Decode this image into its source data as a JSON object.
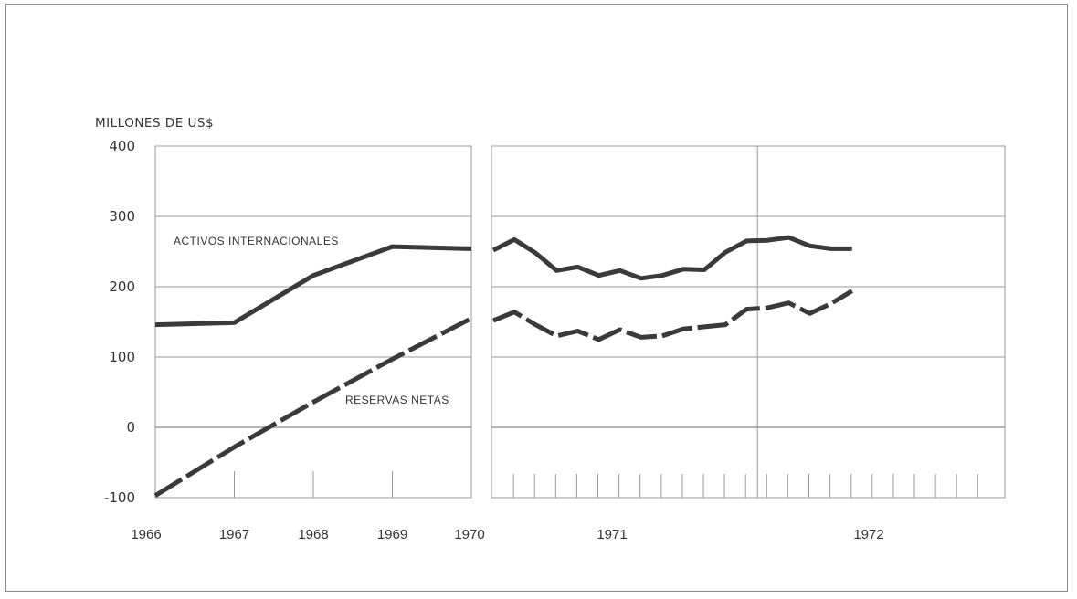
{
  "chart_data": {
    "type": "line",
    "ylabel": "MILLONES DE US$",
    "ylim": [
      -100,
      400
    ],
    "yticks": [
      "400",
      "300",
      "200",
      "100",
      "0",
      "-100"
    ],
    "x_labels": [
      "1966",
      "1967",
      "1968",
      "1969",
      "1970",
      "1971",
      "1972"
    ],
    "grid": true,
    "series": [
      {
        "name": "ACTIVOS INTERNACIONALES",
        "style": "solid",
        "color": "#3a3a3a",
        "annual": {
          "x": [
            1966,
            1967,
            1968,
            1969,
            1970
          ],
          "y": [
            146,
            149,
            216,
            257,
            254
          ]
        },
        "monthly": {
          "x": [
            "1970-12",
            "1971-01",
            "1971-02",
            "1971-03",
            "1971-04",
            "1971-05",
            "1971-06",
            "1971-07",
            "1971-08",
            "1971-09",
            "1971-10",
            "1971-11",
            "1971-12",
            "1972-01",
            "1972-02",
            "1972-03",
            "1972-04",
            "1972-05"
          ],
          "y": [
            252,
            267,
            248,
            223,
            228,
            216,
            223,
            212,
            216,
            225,
            224,
            249,
            265,
            266,
            270,
            258,
            254,
            254
          ]
        }
      },
      {
        "name": "RESERVAS NETAS",
        "style": "dashed",
        "color": "#3a3a3a",
        "annual": {
          "x": [
            1966,
            1967,
            1968,
            1969,
            1970
          ],
          "y": [
            -97,
            -28,
            36,
            97,
            155
          ]
        },
        "monthly": {
          "x": [
            "1970-12",
            "1971-01",
            "1971-02",
            "1971-03",
            "1971-04",
            "1971-05",
            "1971-06",
            "1971-07",
            "1971-08",
            "1971-09",
            "1971-10",
            "1971-11",
            "1971-12",
            "1972-01",
            "1972-02",
            "1972-03",
            "1972-04",
            "1972-05"
          ],
          "y": [
            152,
            164,
            146,
            130,
            137,
            125,
            139,
            128,
            130,
            140,
            143,
            146,
            168,
            170,
            177,
            162,
            176,
            194
          ]
        }
      }
    ]
  }
}
